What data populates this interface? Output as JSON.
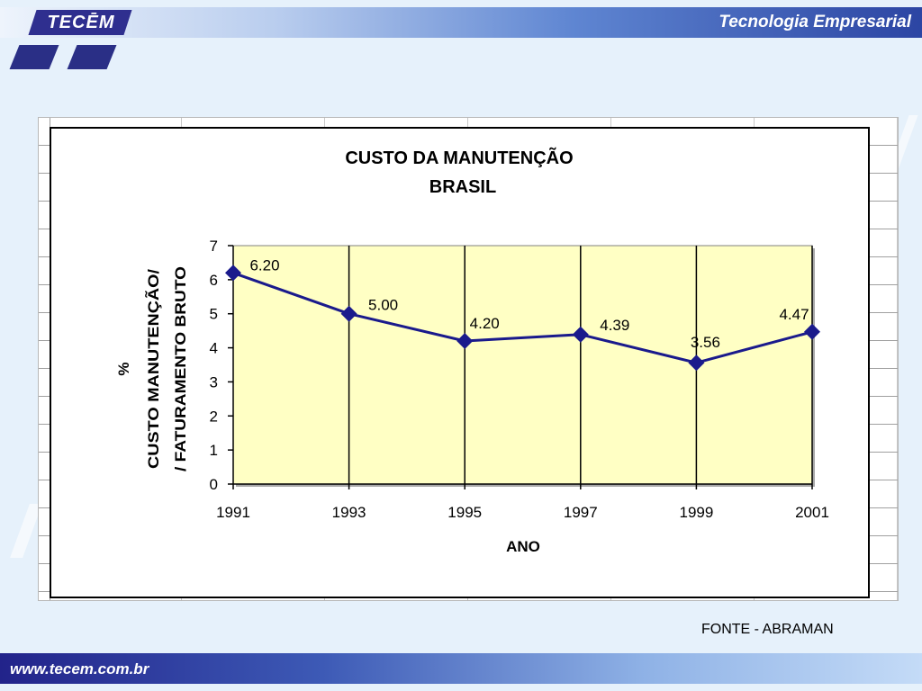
{
  "header": {
    "logo_text": "TECĒM",
    "title": "Tecnologia Empresarial"
  },
  "footer": {
    "url": "www.tecem.com.br"
  },
  "source_note": "FONTE - ABRAMAN",
  "colors": {
    "plot_background": "#ffffc4",
    "series_line": "#1a1a8c",
    "marker": "#1a1a8c",
    "header_dark": "#2c45a3",
    "footer_dark": "#22238a"
  },
  "chart_data": {
    "type": "line",
    "title": "CUSTO DA MANUTENÇÃO",
    "subtitle": "BRASIL",
    "xlabel": "ANO",
    "ylabel_lines": [
      "%",
      "CUSTO MANUTENÇÃO/",
      "/ FATURAMENTO BRUTO"
    ],
    "categories": [
      "1991",
      "1993",
      "1995",
      "1997",
      "1999",
      "2001"
    ],
    "series": [
      {
        "values": [
          6.2,
          5.0,
          4.2,
          4.39,
          3.56,
          4.47
        ],
        "labels": [
          "6.20",
          "5.00",
          "4.20",
          "4.39",
          "3.56",
          "4.47"
        ],
        "marker": "diamond"
      }
    ],
    "ylim": [
      0,
      7
    ],
    "yticks": [
      "0",
      "1",
      "2",
      "3",
      "4",
      "5",
      "6",
      "7"
    ],
    "grid": "vertical lines at each category",
    "legend": "none"
  }
}
